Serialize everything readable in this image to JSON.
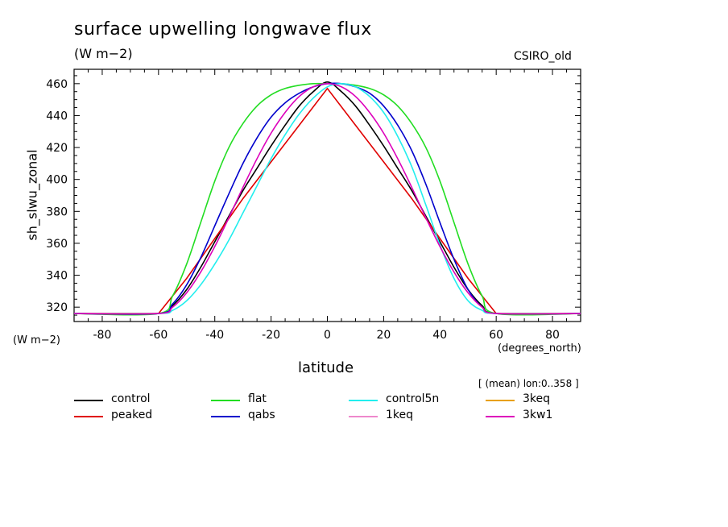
{
  "chart_data": {
    "type": "line",
    "title": "surface upwelling longwave flux",
    "units": "(W m−2)",
    "model": "CSIRO_old",
    "ylabel": "sh_slwu_zonal",
    "yunits": "(W m−2)",
    "xlabel": "latitude",
    "xunits": "(degrees_north)",
    "subtitle": "[ (mean) lon:0..358 ]",
    "xlim": [
      -90,
      90
    ],
    "ylim": [
      311,
      469
    ],
    "xticks": [
      -80,
      -60,
      -40,
      -20,
      0,
      20,
      40,
      60,
      80
    ],
    "yticks": [
      320,
      340,
      360,
      380,
      400,
      420,
      440,
      460
    ],
    "grid": false,
    "legend_position": "bottom",
    "series": [
      {
        "name": "control",
        "color": "#000000",
        "x": [
          -90,
          -60,
          -55,
          -50,
          -45,
          -40,
          -35,
          -30,
          -25,
          -20,
          -15,
          -10,
          -5,
          0,
          5,
          10,
          15,
          20,
          25,
          30,
          35,
          40,
          45,
          50,
          55,
          60,
          90
        ],
        "y": [
          316,
          316,
          321,
          331,
          345,
          361,
          377,
          393,
          407,
          421,
          434,
          446,
          455,
          461,
          455,
          446,
          434,
          421,
          407,
          393,
          377,
          361,
          345,
          331,
          321,
          316,
          316
        ]
      },
      {
        "name": "peaked",
        "color": "#e00000",
        "x": [
          -90,
          -60,
          -50,
          -40,
          -30,
          -20,
          -10,
          0,
          10,
          20,
          30,
          40,
          50,
          60,
          90
        ],
        "y": [
          316,
          316,
          338,
          363,
          388,
          411,
          434,
          457,
          434,
          411,
          388,
          363,
          338,
          316,
          316
        ]
      },
      {
        "name": "flat",
        "color": "#22dd22",
        "x": [
          -90,
          -60,
          -55,
          -50,
          -45,
          -40,
          -35,
          -30,
          -25,
          -20,
          -15,
          -10,
          -5,
          0,
          5,
          10,
          15,
          20,
          25,
          30,
          35,
          40,
          45,
          50,
          55,
          60,
          90
        ],
        "y": [
          316,
          316,
          327,
          347,
          373,
          399,
          420,
          435,
          446,
          453,
          457,
          459,
          460,
          460,
          460,
          459,
          457,
          453,
          446,
          435,
          420,
          399,
          373,
          347,
          327,
          316,
          316
        ]
      },
      {
        "name": "qabs",
        "color": "#0000cc",
        "x": [
          -90,
          -60,
          -55,
          -50,
          -45,
          -40,
          -35,
          -30,
          -25,
          -20,
          -15,
          -10,
          -5,
          0,
          5,
          10,
          15,
          20,
          25,
          30,
          35,
          40,
          45,
          50,
          55,
          60,
          90
        ],
        "y": [
          316,
          316,
          322,
          334,
          351,
          371,
          391,
          410,
          426,
          439,
          448,
          454,
          458,
          460,
          460,
          458,
          454,
          446,
          434,
          418,
          397,
          373,
          350,
          331,
          320,
          316,
          316
        ]
      },
      {
        "name": "control5n",
        "color": "#22eeee",
        "x": [
          -90,
          -60,
          -55,
          -50,
          -45,
          -40,
          -35,
          -30,
          -25,
          -20,
          -15,
          -10,
          -5,
          0,
          5,
          10,
          15,
          20,
          25,
          30,
          35,
          40,
          45,
          50,
          55,
          60,
          90
        ],
        "y": [
          316,
          316,
          318,
          324,
          334,
          347,
          362,
          379,
          396,
          413,
          428,
          441,
          451,
          458,
          460,
          458,
          452,
          442,
          427,
          408,
          384,
          359,
          338,
          324,
          318,
          316,
          316
        ]
      },
      {
        "name": "1keq",
        "color": "#ee88cc",
        "x": [],
        "y": []
      },
      {
        "name": "3keq",
        "color": "#e8a000",
        "x": [],
        "y": []
      },
      {
        "name": "3kw1",
        "color": "#dd00bb",
        "x": [
          -90,
          -60,
          -55,
          -50,
          -45,
          -40,
          -35,
          -30,
          -25,
          -20,
          -15,
          -10,
          -5,
          0,
          5,
          10,
          15,
          20,
          25,
          30,
          35,
          40,
          45,
          50,
          55,
          60,
          90
        ],
        "y": [
          316,
          316,
          320,
          329,
          342,
          358,
          376,
          395,
          413,
          429,
          442,
          452,
          458,
          460,
          458,
          452,
          442,
          429,
          413,
          395,
          376,
          358,
          342,
          329,
          320,
          316,
          316
        ]
      }
    ]
  }
}
